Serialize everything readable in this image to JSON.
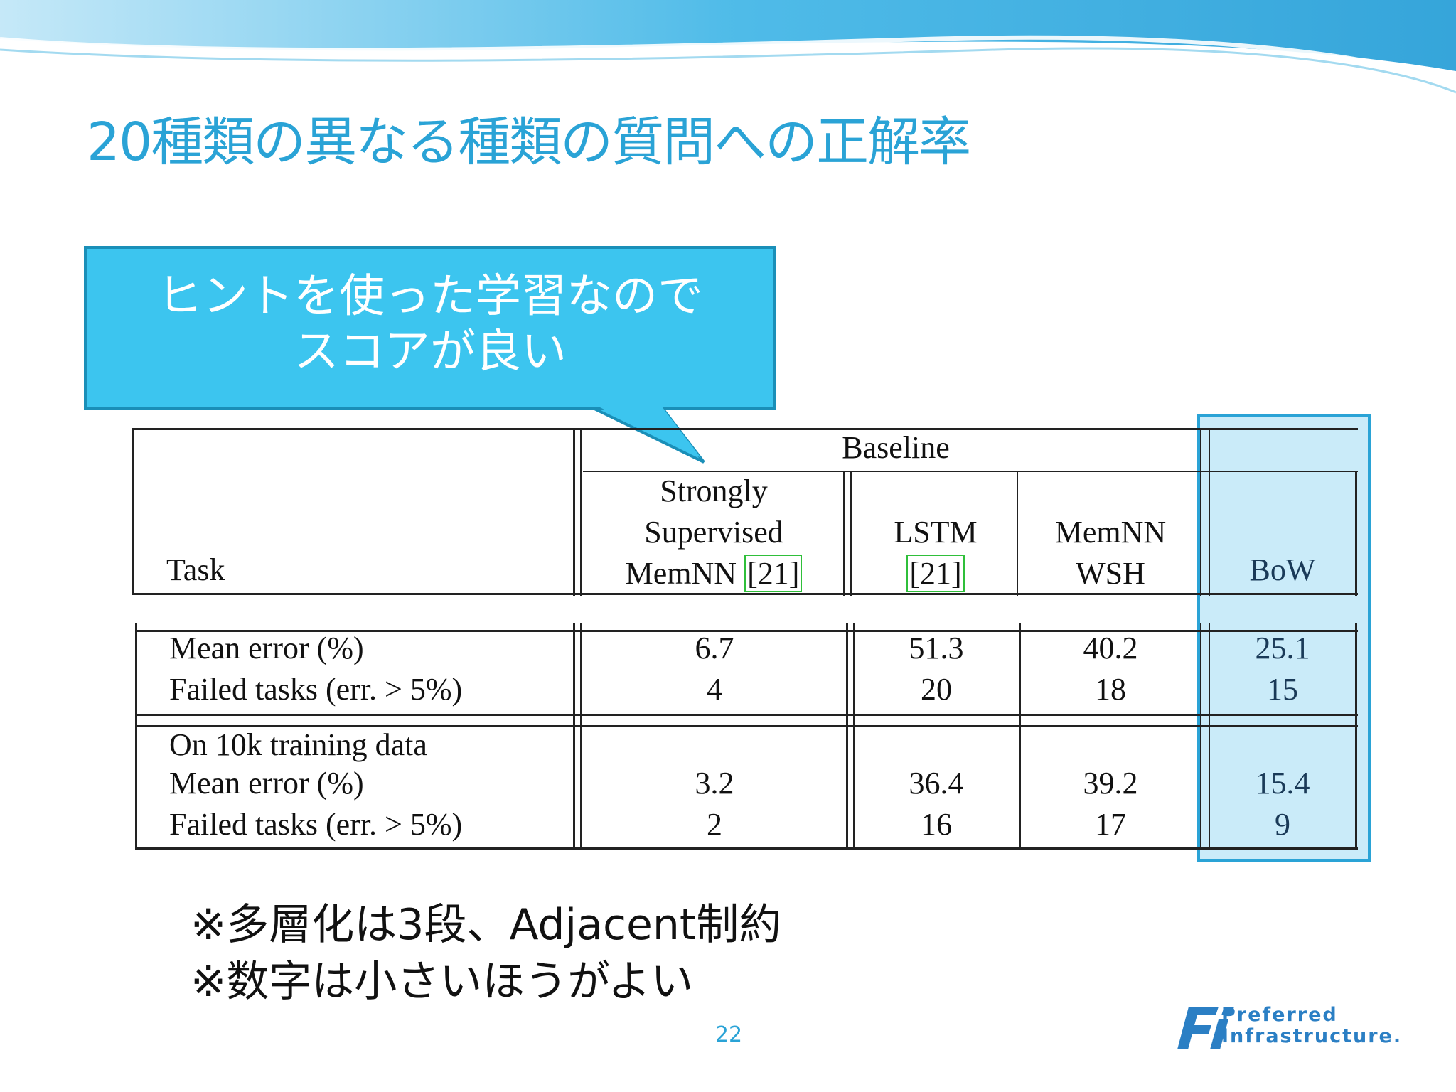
{
  "slide": {
    "title": "20種類の異なる種類の質問への正解率",
    "callout": {
      "line1": "ヒントを使った学習なので",
      "line2": "スコアが良い"
    },
    "notes": [
      "※多層化は3段、Adjacent制約",
      "※数字は小さいほうがよい"
    ],
    "page_number": "22",
    "logo": {
      "line1": "Preferred",
      "line2": "Infrastructure.",
      "icon": "pfi-logo-icon"
    },
    "colors": {
      "title": "#2aa3d6",
      "callout_fill": "#3cc5ef",
      "callout_border": "#1a8fb8",
      "highlight": "#b8e4f7"
    }
  },
  "table": {
    "group_header": "Baseline",
    "task_header": "Task",
    "columns": [
      {
        "lines": [
          "Strongly",
          "Supervised",
          "MemNN"
        ],
        "ref": "[21]"
      },
      {
        "lines": [
          "LSTM"
        ],
        "ref": "[21]"
      },
      {
        "lines": [
          "MemNN",
          "WSH"
        ],
        "ref": ""
      },
      {
        "lines": [
          "BoW"
        ],
        "ref": ""
      }
    ],
    "sections": [
      {
        "heading": "",
        "rows": [
          {
            "label": "Mean error (%)",
            "values": [
              "6.7",
              "51.3",
              "40.2",
              "25.1"
            ]
          },
          {
            "label": "Failed tasks (err. > 5%)",
            "values": [
              "4",
              "20",
              "18",
              "15"
            ]
          }
        ]
      },
      {
        "heading": "On 10k training data",
        "rows": [
          {
            "label": "Mean error (%)",
            "values": [
              "3.2",
              "36.4",
              "39.2",
              "15.4"
            ]
          },
          {
            "label": "Failed tasks (err. > 5%)",
            "values": [
              "2",
              "16",
              "17",
              "9"
            ]
          }
        ]
      }
    ]
  }
}
